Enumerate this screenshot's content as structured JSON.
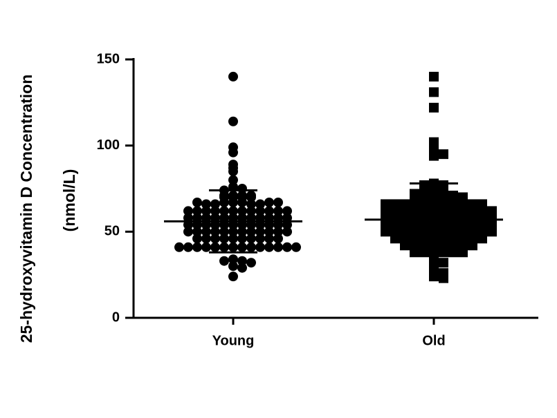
{
  "chart_data": {
    "type": "scatter",
    "ylabel": [
      "25-hydroxyvitamin D Concentration",
      "(nmol/L)"
    ],
    "categories": [
      "Young",
      "Old"
    ],
    "ylim": [
      0,
      150
    ],
    "yticks": [
      0,
      50,
      100,
      150
    ],
    "series": [
      {
        "name": "Young",
        "color": "#000000",
        "marker": "circle",
        "mean": 56,
        "sd": 18,
        "values": [
          140,
          114,
          99,
          96,
          89,
          87,
          85,
          80,
          76,
          75,
          74,
          71,
          71,
          70,
          70,
          70,
          70,
          71,
          71,
          67,
          67,
          67,
          66,
          66,
          66,
          66,
          67,
          67,
          67,
          62,
          62,
          62,
          62,
          62,
          62,
          62,
          62,
          62,
          62,
          62,
          62,
          58,
          58,
          58,
          58,
          58,
          58,
          58,
          58,
          58,
          58,
          58,
          58,
          54,
          54,
          54,
          54,
          54,
          54,
          54,
          54,
          54,
          54,
          54,
          54,
          50,
          50,
          50,
          50,
          50,
          50,
          50,
          50,
          50,
          50,
          50,
          50,
          46,
          46,
          46,
          46,
          46,
          46,
          46,
          46,
          46,
          46,
          41,
          41,
          41,
          41,
          41,
          41,
          41,
          41,
          41,
          41,
          41,
          41,
          41,
          41,
          34,
          33,
          33,
          32,
          30,
          29,
          24
        ]
      },
      {
        "name": "Old",
        "color": "#000000",
        "marker": "square",
        "mean": 57,
        "sd": 21,
        "values": [
          140,
          131,
          122,
          102,
          100,
          96,
          94,
          95,
          78,
          77,
          77,
          76,
          76,
          75,
          73,
          71,
          71,
          70,
          70,
          70,
          70,
          70,
          70,
          71,
          72,
          66,
          66,
          66,
          66,
          66,
          66,
          66,
          66,
          66,
          66,
          66,
          62,
          62,
          62,
          62,
          62,
          62,
          62,
          62,
          62,
          62,
          62,
          62,
          58,
          58,
          58,
          58,
          58,
          58,
          58,
          58,
          58,
          58,
          58,
          58,
          54,
          54,
          54,
          54,
          54,
          54,
          54,
          54,
          54,
          54,
          54,
          54,
          50,
          50,
          50,
          50,
          50,
          50,
          50,
          50,
          50,
          50,
          50,
          50,
          46,
          46,
          46,
          46,
          46,
          46,
          46,
          46,
          46,
          46,
          42,
          42,
          42,
          42,
          42,
          42,
          42,
          42,
          38,
          38,
          38,
          38,
          38,
          38,
          33,
          32,
          29,
          28,
          26,
          24,
          23
        ]
      }
    ]
  }
}
